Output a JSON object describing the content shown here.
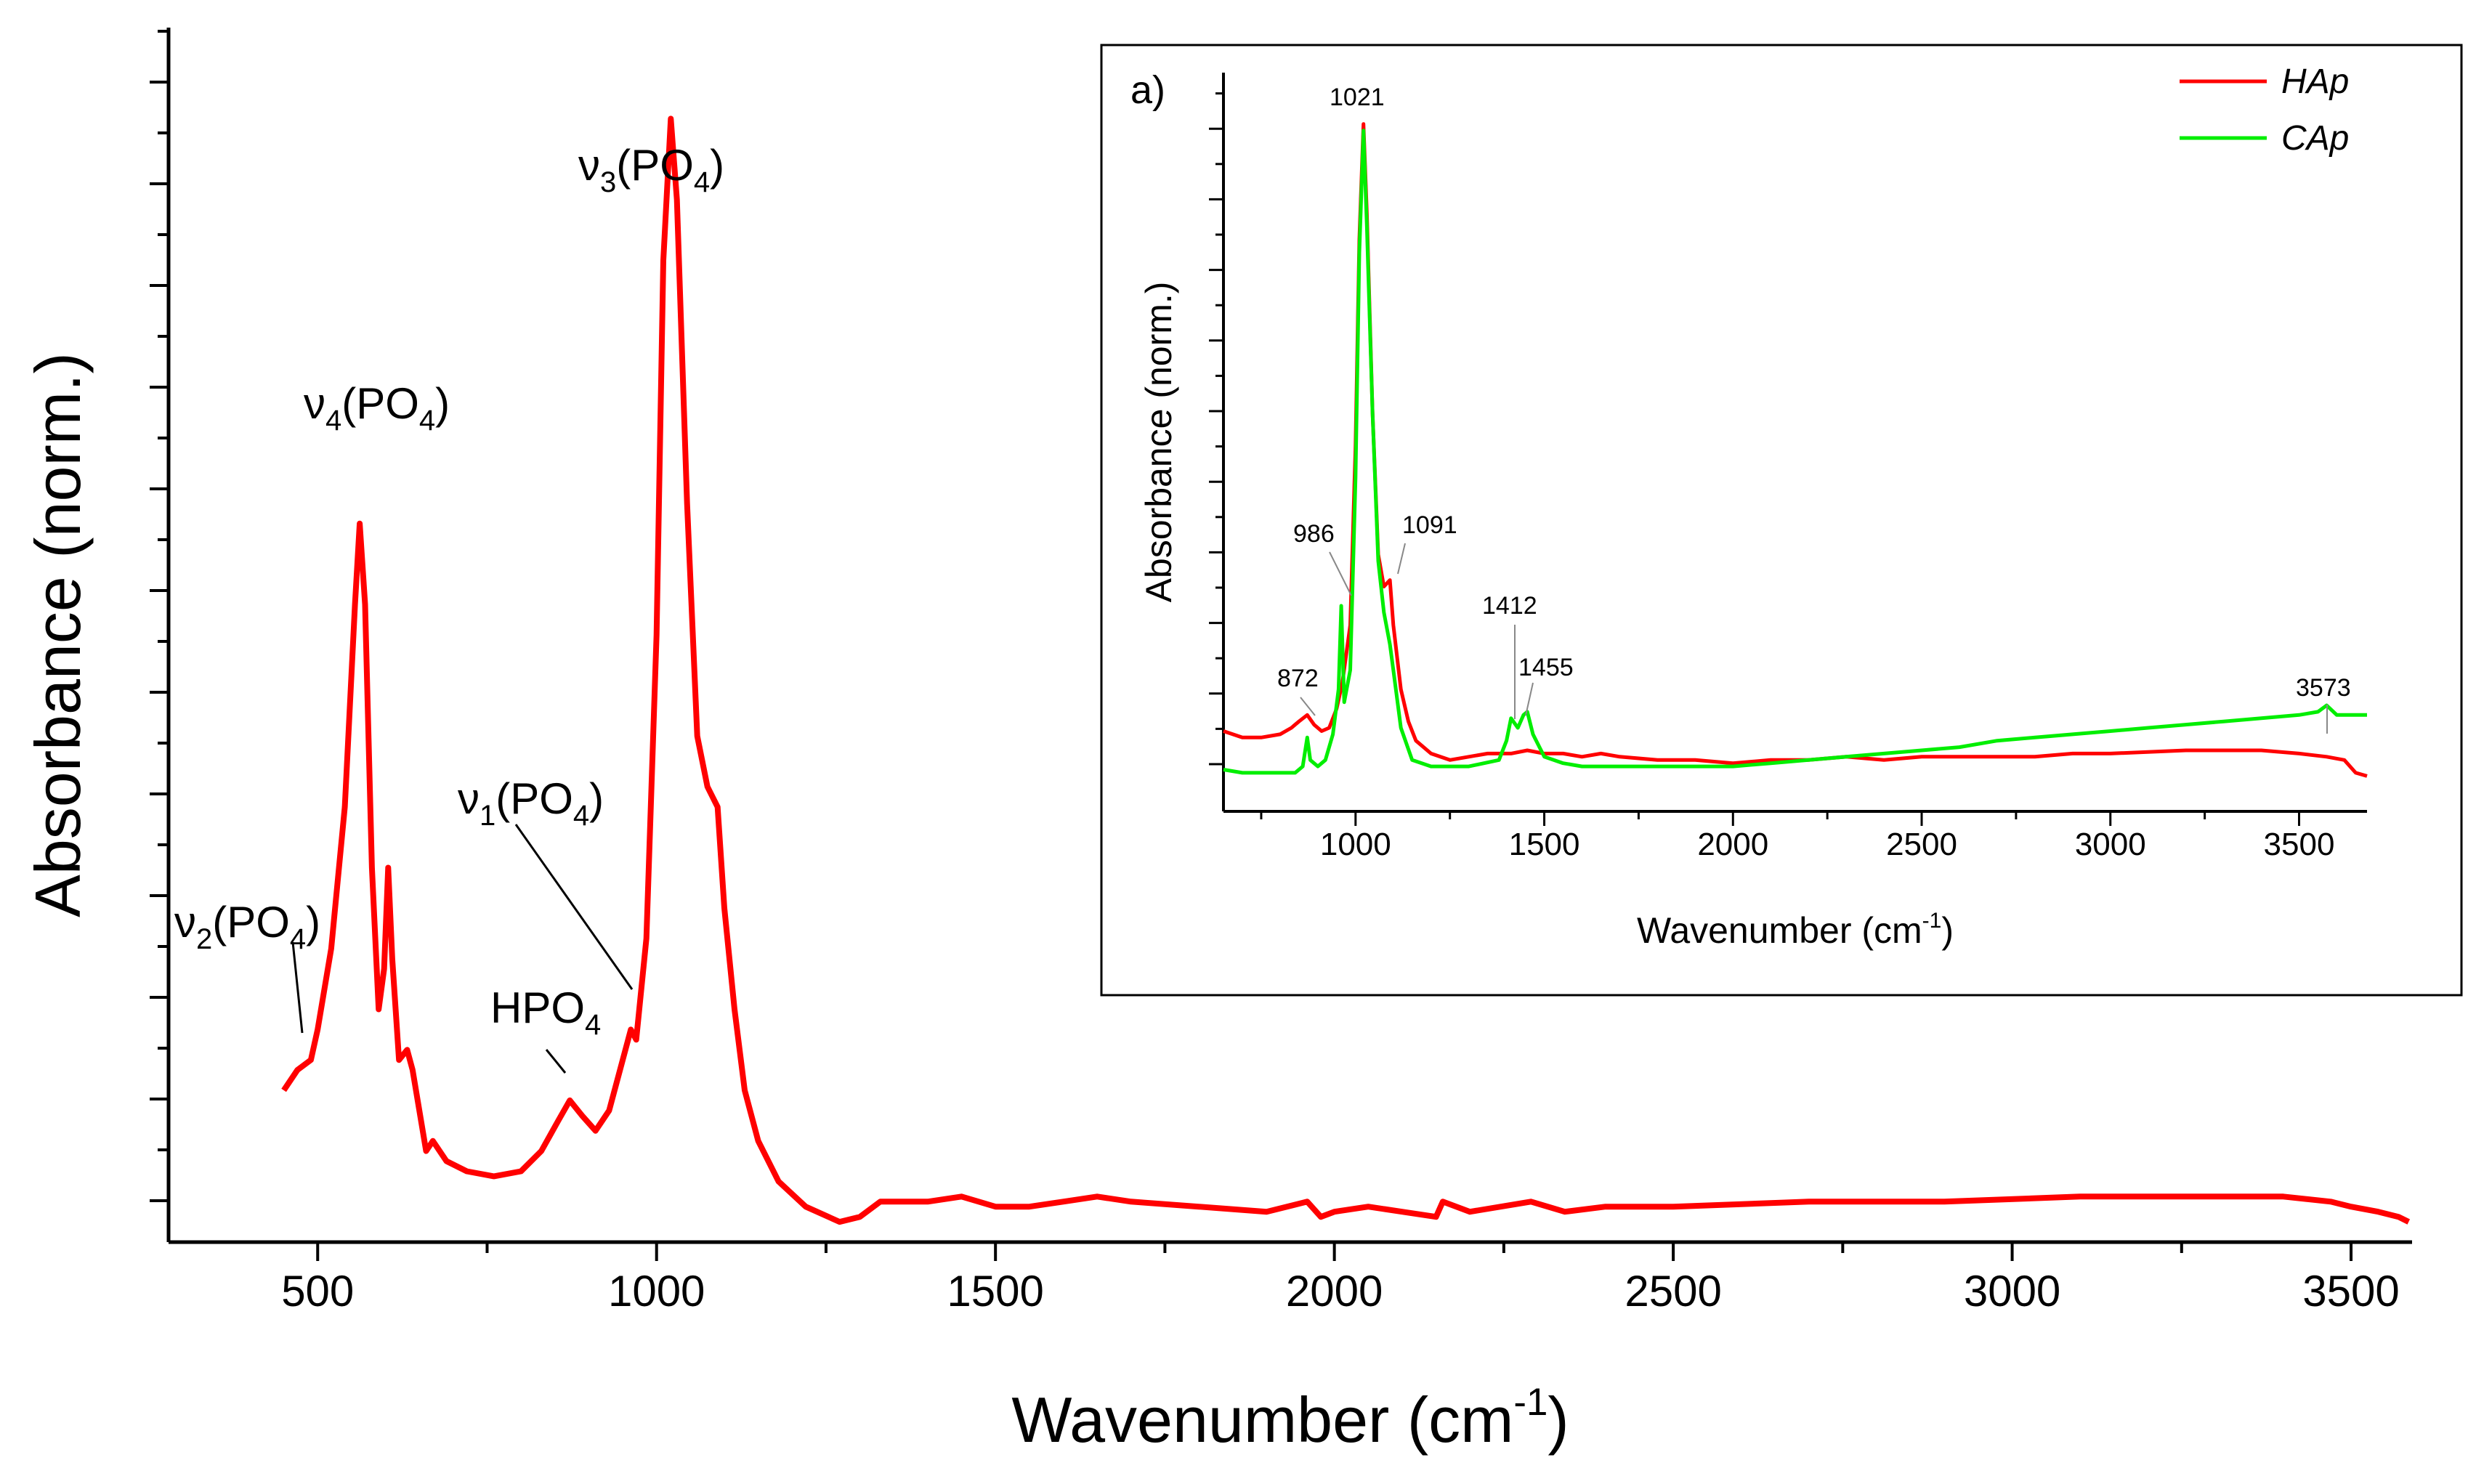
{
  "chart_data": [
    {
      "type": "line",
      "xlabel": "Wavenumber (cm",
      "xlabel_sup": "-1",
      "xlabel_end": ")",
      "ylabel": "Absorbance (norm.)",
      "xlim": [
        280,
        3590
      ],
      "ylim": [
        -0.15,
        1.05
      ],
      "xticks": [
        500,
        1000,
        1500,
        2000,
        2500,
        3000,
        3500
      ],
      "xtick_labels": [
        "500",
        "1000",
        "1500",
        "2000",
        "2500",
        "3000",
        "3500"
      ],
      "series": [
        {
          "name": "HAp",
          "color": "#ff0000",
          "x": [
            450,
            470,
            490,
            500,
            520,
            540,
            555,
            562,
            570,
            580,
            590,
            598,
            604,
            610,
            620,
            632,
            640,
            650,
            660,
            670,
            690,
            720,
            760,
            800,
            830,
            855,
            872,
            890,
            910,
            930,
            950,
            962,
            970,
            985,
            1000,
            1010,
            1021,
            1030,
            1045,
            1060,
            1075,
            1090,
            1100,
            1115,
            1130,
            1150,
            1180,
            1220,
            1270,
            1300,
            1330,
            1400,
            1450,
            1500,
            1550,
            1600,
            1650,
            1700,
            1800,
            1900,
            1960,
            1980,
            2000,
            2050,
            2100,
            2150,
            2160,
            2200,
            2290,
            2340,
            2400,
            2500,
            2700,
            2900,
            3100,
            3300,
            3400,
            3470,
            3500,
            3540,
            3570,
            3585
          ],
          "y": [
            0.0,
            0.02,
            0.03,
            0.06,
            0.14,
            0.28,
            0.48,
            0.56,
            0.48,
            0.22,
            0.08,
            0.12,
            0.22,
            0.13,
            0.03,
            0.04,
            0.02,
            -0.02,
            -0.06,
            -0.05,
            -0.07,
            -0.08,
            -0.085,
            -0.08,
            -0.06,
            -0.03,
            -0.01,
            -0.025,
            -0.04,
            -0.02,
            0.03,
            0.06,
            0.05,
            0.15,
            0.45,
            0.82,
            0.96,
            0.88,
            0.58,
            0.35,
            0.3,
            0.28,
            0.18,
            0.08,
            0.0,
            -0.05,
            -0.09,
            -0.115,
            -0.13,
            -0.125,
            -0.11,
            -0.11,
            -0.105,
            -0.115,
            -0.115,
            -0.11,
            -0.105,
            -0.11,
            -0.115,
            -0.12,
            -0.11,
            -0.125,
            -0.12,
            -0.115,
            -0.12,
            -0.125,
            -0.11,
            -0.12,
            -0.11,
            -0.12,
            -0.115,
            -0.115,
            -0.11,
            -0.11,
            -0.105,
            -0.105,
            -0.105,
            -0.11,
            -0.115,
            -0.12,
            -0.125,
            -0.13
          ]
        }
      ],
      "annotations": [
        {
          "base": "ν",
          "sub": "3",
          "rest": "(PO",
          "sub2": "4",
          "end": ")",
          "ax": 1021,
          "ay": 1.01
        },
        {
          "base": "ν",
          "sub": "4",
          "rest": "(PO",
          "sub2": "4",
          "end": ")",
          "ax": 590,
          "ay": 0.72
        },
        {
          "base": "ν",
          "sub": "1",
          "rest": "(PO",
          "sub2": "4",
          "end": ")",
          "ax": 895,
          "ay": 0.36
        },
        {
          "base": "ν",
          "sub": "2",
          "rest": "(PO",
          "sub2": "4",
          "end": ")",
          "ax": 370,
          "ay": 0.14
        },
        {
          "base": "HPO",
          "sub": "4",
          "rest": "",
          "sub2": "",
          "end": "",
          "ax": 800,
          "ay": 0.055
        }
      ]
    },
    {
      "type": "line",
      "panel_label": "a)",
      "xlabel": "Wavenumber (cm",
      "xlabel_sup": "-1",
      "xlabel_end": ")",
      "ylabel": "Absorbance (norm.)",
      "xlim": [
        650,
        3680
      ],
      "ylim": [
        -0.07,
        1.08
      ],
      "xticks": [
        1000,
        1500,
        2000,
        2500,
        3000,
        3500
      ],
      "xtick_labels": [
        "1000",
        "1500",
        "2000",
        "2500",
        "3000",
        "3500"
      ],
      "legend": {
        "position": "top-right",
        "entries": [
          "HAp",
          "CAp"
        ]
      },
      "series": [
        {
          "name": "HAp",
          "color": "#ff0000",
          "x": [
            650,
            700,
            750,
            800,
            830,
            850,
            872,
            890,
            910,
            930,
            950,
            965,
            986,
            1000,
            1010,
            1021,
            1030,
            1045,
            1060,
            1075,
            1091,
            1100,
            1120,
            1140,
            1160,
            1200,
            1250,
            1300,
            1350,
            1412,
            1455,
            1500,
            1550,
            1600,
            1650,
            1700,
            1800,
            1900,
            2000,
            2100,
            2200,
            2300,
            2400,
            2500,
            2600,
            2700,
            2800,
            2900,
            3000,
            3200,
            3400,
            3500,
            3573,
            3620,
            3650,
            3680
          ],
          "y": [
            0.055,
            0.045,
            0.045,
            0.05,
            0.06,
            0.07,
            0.08,
            0.065,
            0.055,
            0.06,
            0.09,
            0.13,
            0.22,
            0.5,
            0.82,
            1.0,
            0.86,
            0.55,
            0.33,
            0.28,
            0.29,
            0.22,
            0.12,
            0.07,
            0.04,
            0.02,
            0.01,
            0.015,
            0.02,
            0.02,
            0.025,
            0.02,
            0.02,
            0.015,
            0.02,
            0.015,
            0.01,
            0.01,
            0.005,
            0.01,
            0.01,
            0.015,
            0.01,
            0.015,
            0.015,
            0.015,
            0.015,
            0.02,
            0.02,
            0.025,
            0.025,
            0.02,
            0.015,
            0.01,
            -0.01,
            -0.015
          ]
        },
        {
          "name": "CAp",
          "color": "#00ee00",
          "x": [
            650,
            700,
            750,
            800,
            840,
            860,
            872,
            880,
            900,
            920,
            940,
            955,
            962,
            970,
            986,
            1000,
            1010,
            1021,
            1030,
            1045,
            1060,
            1075,
            1091,
            1100,
            1120,
            1150,
            1200,
            1300,
            1380,
            1400,
            1412,
            1430,
            1445,
            1455,
            1470,
            1500,
            1550,
            1600,
            1700,
            1800,
            1900,
            2000,
            2100,
            2200,
            2300,
            2400,
            2500,
            2600,
            2700,
            2800,
            2900,
            3000,
            3100,
            3200,
            3300,
            3400,
            3500,
            3550,
            3573,
            3600,
            3680
          ],
          "y": [
            -0.005,
            -0.01,
            -0.01,
            -0.01,
            -0.01,
            0.0,
            0.045,
            0.01,
            0.0,
            0.01,
            0.05,
            0.12,
            0.25,
            0.1,
            0.15,
            0.45,
            0.8,
            0.99,
            0.84,
            0.55,
            0.32,
            0.24,
            0.19,
            0.15,
            0.06,
            0.01,
            0.0,
            0.0,
            0.01,
            0.04,
            0.075,
            0.06,
            0.08,
            0.085,
            0.05,
            0.015,
            0.005,
            0.0,
            0.0,
            0.0,
            0.0,
            0.0,
            0.005,
            0.01,
            0.015,
            0.02,
            0.025,
            0.03,
            0.04,
            0.045,
            0.05,
            0.055,
            0.06,
            0.065,
            0.07,
            0.075,
            0.08,
            0.085,
            0.095,
            0.08,
            0.08
          ]
        }
      ],
      "annotations": [
        {
          "text": "1021",
          "ax": 1021,
          "ay": 1.05
        },
        {
          "text": "986",
          "ax": 945,
          "ay": 0.36
        },
        {
          "text": "1091",
          "ax": 1150,
          "ay": 0.37
        },
        {
          "text": "1412",
          "ax": 1410,
          "ay": 0.24
        },
        {
          "text": "1455",
          "ax": 1540,
          "ay": 0.15
        },
        {
          "text": "872",
          "ax": 840,
          "ay": 0.135
        },
        {
          "text": "3573",
          "ax": 3573,
          "ay": 0.12
        }
      ]
    }
  ]
}
